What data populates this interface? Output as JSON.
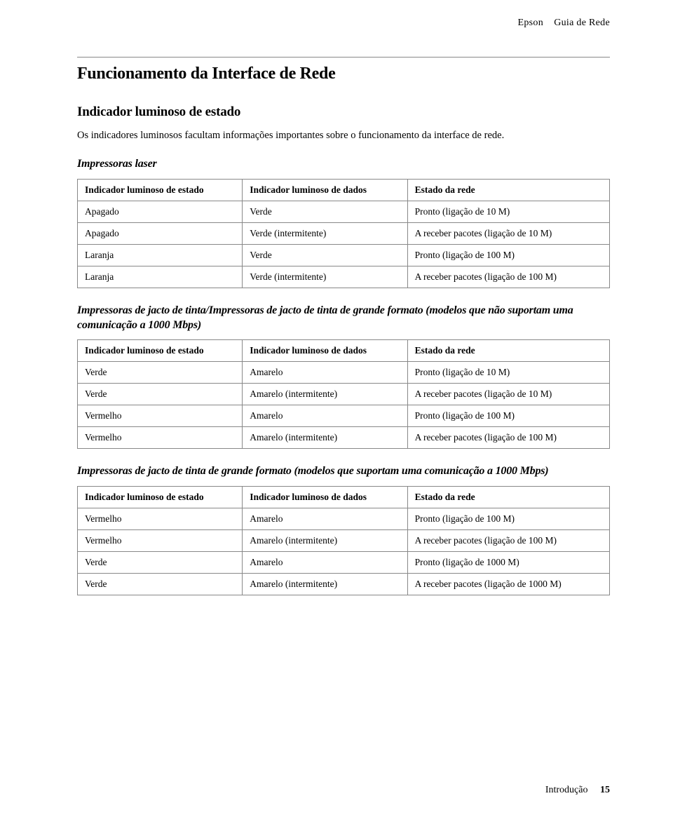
{
  "header": {
    "brand": "Epson",
    "doc_title": "Guia de Rede"
  },
  "title": "Funcionamento da Interface de Rede",
  "subtitle": "Indicador luminoso de estado",
  "intro": "Os indicadores luminosos facultam informações importantes sobre o funcionamento da interface de rede.",
  "section1": {
    "label": "Impressoras laser",
    "columns": [
      "Indicador luminoso de estado",
      "Indicador luminoso de dados",
      "Estado da rede"
    ],
    "rows": [
      [
        "Apagado",
        "Verde",
        "Pronto (ligação de 10 M)"
      ],
      [
        "Apagado",
        "Verde (intermitente)",
        "A receber pacotes (ligação de 10 M)"
      ],
      [
        "Laranja",
        "Verde",
        "Pronto (ligação de 100 M)"
      ],
      [
        "Laranja",
        "Verde (intermitente)",
        "A receber pacotes (ligação de 100 M)"
      ]
    ]
  },
  "section2": {
    "label": "Impressoras de jacto de tinta/Impressoras de jacto de tinta de grande formato (modelos que não suportam uma comunicação a 1000 Mbps)",
    "columns": [
      "Indicador luminoso de estado",
      "Indicador luminoso de dados",
      "Estado da rede"
    ],
    "rows": [
      [
        "Verde",
        "Amarelo",
        "Pronto (ligação de 10 M)"
      ],
      [
        "Verde",
        "Amarelo (intermitente)",
        "A receber pacotes (ligação de 10 M)"
      ],
      [
        "Vermelho",
        "Amarelo",
        "Pronto (ligação de 100 M)"
      ],
      [
        "Vermelho",
        "Amarelo (intermitente)",
        "A receber pacotes (ligação de 100 M)"
      ]
    ]
  },
  "section3": {
    "label": "Impressoras de jacto de tinta de grande formato (modelos que suportam uma comunicação a 1000 Mbps)",
    "columns": [
      "Indicador luminoso de estado",
      "Indicador luminoso de dados",
      "Estado da rede"
    ],
    "rows": [
      [
        "Vermelho",
        "Amarelo",
        "Pronto (ligação de 100 M)"
      ],
      [
        "Vermelho",
        "Amarelo (intermitente)",
        "A receber pacotes (ligação de 100 M)"
      ],
      [
        "Verde",
        "Amarelo",
        "Pronto (ligação de 1000 M)"
      ],
      [
        "Verde",
        "Amarelo (intermitente)",
        "A receber pacotes (ligação de 1000 M)"
      ]
    ]
  },
  "footer": {
    "section_name": "Introdução",
    "page_number": "15"
  }
}
